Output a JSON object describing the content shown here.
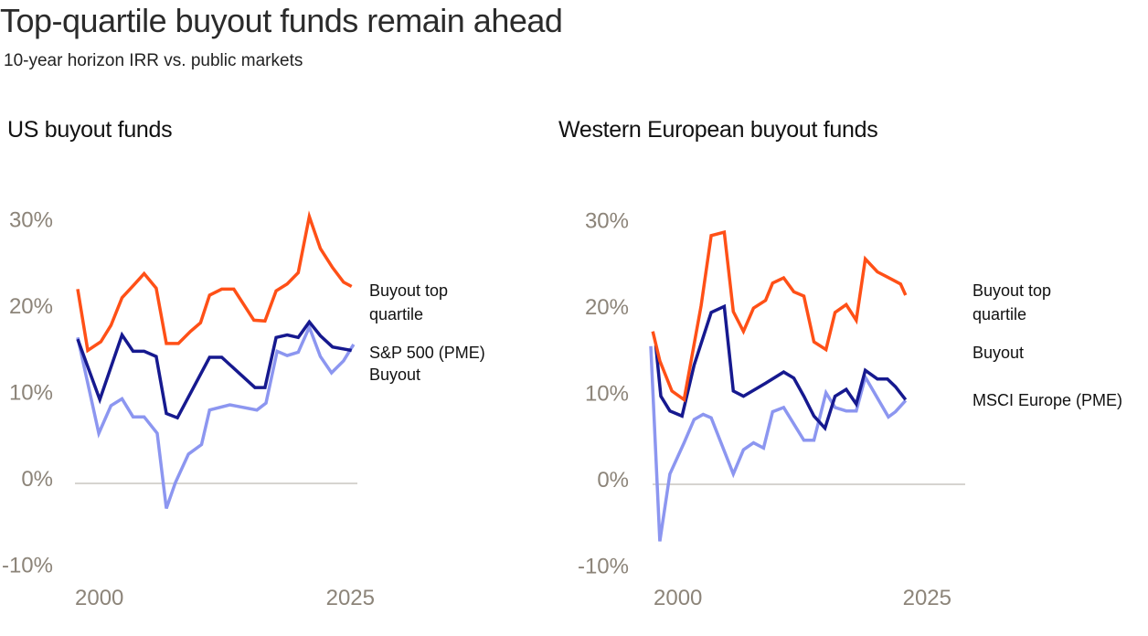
{
  "title": "Top-quartile buyout funds remain ahead",
  "subtitle": "10-year horizon IRR vs. public markets",
  "colors": {
    "top_quartile": "#ff5017",
    "buyout": "#16198f",
    "pme": "#8c96f0",
    "axis_text": "#8c8479",
    "gridline": "#c8c5c0"
  },
  "chart_data": [
    {
      "type": "line",
      "title": "US buyout funds",
      "xlabel": "",
      "ylabel": "",
      "ylim": [
        -10,
        30
      ],
      "xlim": [
        1997.5,
        2025
      ],
      "yticks": [
        30,
        20,
        10,
        0,
        -10
      ],
      "ytick_labels": [
        "30%",
        "20%",
        "10%",
        "0%",
        "-10%"
      ],
      "xtick_labels": [
        "2000",
        "2025"
      ],
      "zero_line": true,
      "grid": false,
      "legend": "right, inline at line ends",
      "legend_labels": [
        "Buyout top quartile",
        "S&P 500 (PME)",
        "Buyout"
      ],
      "series": [
        {
          "name": "Buyout top quartile",
          "color_key": "top_quartile",
          "points": [
            [
              1997.5,
              22.5
            ],
            [
              1998.5,
              15.4
            ],
            [
              1999.8,
              16.4
            ],
            [
              2000.8,
              18.3
            ],
            [
              2001.9,
              21.5
            ],
            [
              2003.1,
              23.0
            ],
            [
              2004.1,
              24.3
            ],
            [
              2005.3,
              22.6
            ],
            [
              2006.3,
              16.2
            ],
            [
              2007.5,
              16.2
            ],
            [
              2008.7,
              17.6
            ],
            [
              2009.7,
              18.6
            ],
            [
              2010.6,
              21.8
            ],
            [
              2011.8,
              22.5
            ],
            [
              2013.0,
              22.5
            ],
            [
              2014.0,
              20.7
            ],
            [
              2015.0,
              18.9
            ],
            [
              2016.1,
              18.8
            ],
            [
              2017.2,
              22.3
            ],
            [
              2018.3,
              23.1
            ],
            [
              2019.4,
              24.4
            ],
            [
              2020.5,
              30.9
            ],
            [
              2021.6,
              27.2
            ],
            [
              2022.8,
              25.0
            ],
            [
              2023.9,
              23.3
            ],
            [
              2024.7,
              22.8
            ]
          ]
        },
        {
          "name": "Buyout",
          "color_key": "buyout",
          "points": [
            [
              1997.5,
              16.7
            ],
            [
              1999.7,
              9.7
            ],
            [
              2001.9,
              17.2
            ],
            [
              2003.0,
              15.3
            ],
            [
              2004.1,
              15.3
            ],
            [
              2005.3,
              14.7
            ],
            [
              2006.3,
              8.1
            ],
            [
              2007.4,
              7.6
            ],
            [
              2010.6,
              14.6
            ],
            [
              2011.8,
              14.6
            ],
            [
              2015.1,
              11.1
            ],
            [
              2016.1,
              11.1
            ],
            [
              2017.2,
              16.9
            ],
            [
              2018.3,
              17.2
            ],
            [
              2019.4,
              16.9
            ],
            [
              2020.5,
              18.7
            ],
            [
              2021.6,
              17.1
            ],
            [
              2022.8,
              15.8
            ],
            [
              2024.7,
              15.4
            ]
          ]
        },
        {
          "name": "S&P 500 (PME)",
          "color_key": "pme",
          "points": [
            [
              1997.5,
              16.9
            ],
            [
              1999.6,
              5.8
            ],
            [
              2000.8,
              9.0
            ],
            [
              2001.9,
              9.8
            ],
            [
              2003.0,
              7.7
            ],
            [
              2004.1,
              7.7
            ],
            [
              2005.4,
              5.8
            ],
            [
              2006.3,
              -2.9
            ],
            [
              2007.2,
              0.1
            ],
            [
              2008.5,
              3.4
            ],
            [
              2009.8,
              4.5
            ],
            [
              2010.6,
              8.5
            ],
            [
              2012.6,
              9.1
            ],
            [
              2015.3,
              8.5
            ],
            [
              2016.2,
              9.3
            ],
            [
              2017.3,
              15.3
            ],
            [
              2018.3,
              14.8
            ],
            [
              2019.4,
              15.2
            ],
            [
              2020.5,
              18.1
            ],
            [
              2021.6,
              14.7
            ],
            [
              2022.7,
              12.8
            ],
            [
              2023.9,
              14.2
            ],
            [
              2024.9,
              16.1
            ]
          ]
        }
      ]
    },
    {
      "type": "line",
      "title": "Western European buyout funds",
      "xlabel": "",
      "ylabel": "",
      "ylim": [
        -10,
        30
      ],
      "xlim": [
        1997.5,
        2025
      ],
      "yticks": [
        30,
        20,
        10,
        0,
        -10
      ],
      "ytick_labels": [
        "30%",
        "20%",
        "10%",
        "0%",
        "-10%"
      ],
      "xtick_labels": [
        "2000",
        "2025"
      ],
      "zero_line": true,
      "grid": false,
      "legend": "right, inline at line ends",
      "legend_labels": [
        "Buyout top quartile",
        "Buyout",
        "MSCI Europe (PME)"
      ],
      "series": [
        {
          "name": "Buyout top quartile",
          "color_key": "top_quartile",
          "points": [
            [
              1997.7,
              17.7
            ],
            [
              1998.4,
              14.3
            ],
            [
              1999.6,
              10.8
            ],
            [
              2000.8,
              9.8
            ],
            [
              2002.5,
              20.7
            ],
            [
              2003.5,
              28.8
            ],
            [
              2004.8,
              29.2
            ],
            [
              2005.7,
              20.0
            ],
            [
              2006.7,
              17.7
            ],
            [
              2007.7,
              20.4
            ],
            [
              2008.9,
              21.3
            ],
            [
              2009.6,
              23.3
            ],
            [
              2010.7,
              23.9
            ],
            [
              2011.7,
              22.3
            ],
            [
              2012.7,
              21.8
            ],
            [
              2013.7,
              16.5
            ],
            [
              2014.9,
              15.6
            ],
            [
              2015.8,
              19.9
            ],
            [
              2016.9,
              20.8
            ],
            [
              2017.9,
              19.0
            ],
            [
              2018.8,
              26.1
            ],
            [
              2020.0,
              24.6
            ],
            [
              2021.0,
              24.0
            ],
            [
              2022.3,
              23.2
            ],
            [
              2022.8,
              21.9
            ]
          ]
        },
        {
          "name": "Buyout",
          "color_key": "buyout",
          "points": [
            [
              1998.0,
              16.1
            ],
            [
              1998.5,
              10.2
            ],
            [
              1999.4,
              8.5
            ],
            [
              2000.6,
              7.9
            ],
            [
              2001.8,
              13.8
            ],
            [
              2003.5,
              19.9
            ],
            [
              2004.8,
              20.6
            ],
            [
              2005.7,
              10.8
            ],
            [
              2006.7,
              10.2
            ],
            [
              2008.9,
              11.7
            ],
            [
              2010.7,
              13.0
            ],
            [
              2011.7,
              12.3
            ],
            [
              2012.7,
              10.2
            ],
            [
              2013.7,
              7.9
            ],
            [
              2014.8,
              6.5
            ],
            [
              2015.8,
              10.2
            ],
            [
              2016.9,
              11.0
            ],
            [
              2017.9,
              9.3
            ],
            [
              2018.8,
              13.2
            ],
            [
              2020.0,
              12.2
            ],
            [
              2021.0,
              12.2
            ],
            [
              2021.8,
              11.3
            ],
            [
              2022.8,
              9.8
            ]
          ]
        },
        {
          "name": "MSCI Europe (PME)",
          "color_key": "pme",
          "points": [
            [
              1997.5,
              16.0
            ],
            [
              1998.4,
              -6.6
            ],
            [
              1999.4,
              1.2
            ],
            [
              2000.8,
              4.8
            ],
            [
              2001.8,
              7.5
            ],
            [
              2002.7,
              8.1
            ],
            [
              2003.5,
              7.7
            ],
            [
              2005.7,
              1.2
            ],
            [
              2006.7,
              4.0
            ],
            [
              2007.7,
              4.8
            ],
            [
              2008.7,
              4.2
            ],
            [
              2009.6,
              8.4
            ],
            [
              2010.7,
              8.9
            ],
            [
              2012.7,
              5.1
            ],
            [
              2013.7,
              5.1
            ],
            [
              2014.9,
              10.6
            ],
            [
              2015.8,
              8.9
            ],
            [
              2016.9,
              8.5
            ],
            [
              2017.9,
              8.5
            ],
            [
              2018.8,
              12.4
            ],
            [
              2021.1,
              7.8
            ],
            [
              2021.8,
              8.4
            ],
            [
              2022.8,
              9.7
            ]
          ]
        }
      ]
    }
  ],
  "panels": [
    {
      "title": "US buyout funds",
      "legend": [
        {
          "lines": [
            "Buyout top",
            "quartile"
          ]
        },
        {
          "lines": [
            "S&P 500 (PME)"
          ]
        },
        {
          "lines": [
            "Buyout"
          ]
        }
      ]
    },
    {
      "title": "Western European buyout funds",
      "legend": [
        {
          "lines": [
            "Buyout top",
            "quartile"
          ]
        },
        {
          "lines": [
            "Buyout"
          ]
        },
        {
          "lines": [
            "MSCI Europe (PME)"
          ]
        }
      ]
    }
  ]
}
